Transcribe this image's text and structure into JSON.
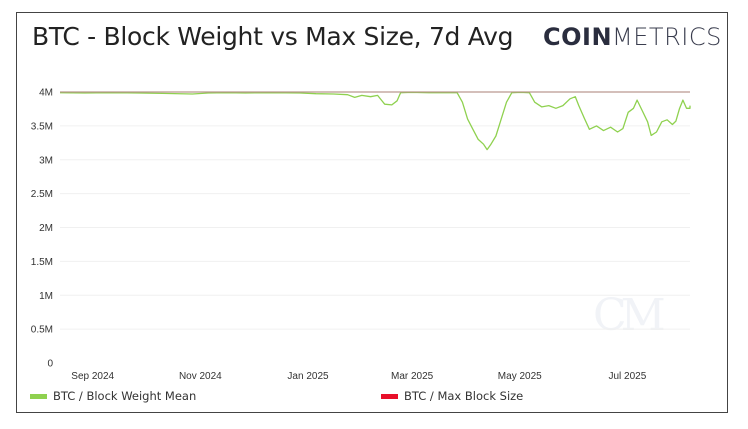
{
  "header": {
    "title": "BTC - Block Weight vs Max Size, 7d Avg",
    "logo_bold": "COIN",
    "logo_light": "METRICS",
    "watermark": "CM"
  },
  "legend": [
    {
      "label": "BTC / Block Weight Mean",
      "color": "#8fd14f"
    },
    {
      "label": "BTC / Max Block Size",
      "color": "#e8102a"
    }
  ],
  "chart_data": {
    "type": "line",
    "title": "BTC - Block Weight vs Max Size, 7d Avg",
    "xlabel": "",
    "ylabel": "",
    "xlim": [
      "2024-08-18",
      "2025-08-10"
    ],
    "ylim": [
      0,
      4000000
    ],
    "grid": true,
    "legend_position": "bottom",
    "y_ticks": [
      {
        "value": 0,
        "label": "0"
      },
      {
        "value": 500000,
        "label": "0.5M"
      },
      {
        "value": 1000000,
        "label": "1M"
      },
      {
        "value": 1500000,
        "label": "1.5M"
      },
      {
        "value": 2000000,
        "label": "2M"
      },
      {
        "value": 2500000,
        "label": "2.5M"
      },
      {
        "value": 3000000,
        "label": "3M"
      },
      {
        "value": 3500000,
        "label": "3.5M"
      },
      {
        "value": 4000000,
        "label": "4M"
      }
    ],
    "x_ticks": [
      {
        "date": "2024-09-01",
        "label": "Sep 2024"
      },
      {
        "date": "2024-11-01",
        "label": "Nov 2024"
      },
      {
        "date": "2025-01-01",
        "label": "Jan 2025"
      },
      {
        "date": "2025-03-01",
        "label": "Mar 2025"
      },
      {
        "date": "2025-05-01",
        "label": "May 2025"
      },
      {
        "date": "2025-07-01",
        "label": "Jul 2025"
      }
    ],
    "series": [
      {
        "name": "BTC / Max Block Size",
        "color": "#e8102a",
        "points": [
          [
            "2024-08-18",
            4000000
          ],
          [
            "2025-08-10",
            4000000
          ]
        ]
      },
      {
        "name": "BTC / Block Weight Mean",
        "color": "#8fd14f",
        "points": [
          [
            "2024-08-18",
            3990000
          ],
          [
            "2024-09-01",
            3985000
          ],
          [
            "2024-09-15",
            3990000
          ],
          [
            "2024-10-01",
            3985000
          ],
          [
            "2024-10-15",
            3980000
          ],
          [
            "2024-11-01",
            3970000
          ],
          [
            "2024-11-10",
            3985000
          ],
          [
            "2024-11-20",
            3990000
          ],
          [
            "2024-12-01",
            3985000
          ],
          [
            "2024-12-15",
            3990000
          ],
          [
            "2025-01-01",
            3985000
          ],
          [
            "2025-01-10",
            3975000
          ],
          [
            "2025-01-20",
            3970000
          ],
          [
            "2025-01-28",
            3960000
          ],
          [
            "2025-02-01",
            3920000
          ],
          [
            "2025-02-05",
            3950000
          ],
          [
            "2025-02-10",
            3930000
          ],
          [
            "2025-02-14",
            3950000
          ],
          [
            "2025-02-18",
            3820000
          ],
          [
            "2025-02-22",
            3810000
          ],
          [
            "2025-02-25",
            3870000
          ],
          [
            "2025-02-27",
            3990000
          ],
          [
            "2025-03-05",
            3995000
          ],
          [
            "2025-03-15",
            3990000
          ],
          [
            "2025-03-25",
            3990000
          ],
          [
            "2025-03-31",
            3990000
          ],
          [
            "2025-04-03",
            3850000
          ],
          [
            "2025-04-06",
            3600000
          ],
          [
            "2025-04-09",
            3450000
          ],
          [
            "2025-04-12",
            3300000
          ],
          [
            "2025-04-15",
            3230000
          ],
          [
            "2025-04-17",
            3150000
          ],
          [
            "2025-04-19",
            3220000
          ],
          [
            "2025-04-22",
            3350000
          ],
          [
            "2025-04-25",
            3600000
          ],
          [
            "2025-04-28",
            3850000
          ],
          [
            "2025-05-01",
            3990000
          ],
          [
            "2025-05-06",
            3995000
          ],
          [
            "2025-05-11",
            3990000
          ],
          [
            "2025-05-14",
            3850000
          ],
          [
            "2025-05-18",
            3780000
          ],
          [
            "2025-05-22",
            3800000
          ],
          [
            "2025-05-26",
            3760000
          ],
          [
            "2025-05-30",
            3800000
          ],
          [
            "2025-06-03",
            3900000
          ],
          [
            "2025-06-06",
            3930000
          ],
          [
            "2025-06-08",
            3800000
          ],
          [
            "2025-06-11",
            3620000
          ],
          [
            "2025-06-14",
            3450000
          ],
          [
            "2025-06-18",
            3500000
          ],
          [
            "2025-06-22",
            3430000
          ],
          [
            "2025-06-26",
            3480000
          ],
          [
            "2025-06-30",
            3410000
          ],
          [
            "2025-07-03",
            3460000
          ],
          [
            "2025-07-06",
            3700000
          ],
          [
            "2025-07-09",
            3760000
          ],
          [
            "2025-07-11",
            3880000
          ],
          [
            "2025-07-14",
            3720000
          ],
          [
            "2025-07-17",
            3560000
          ],
          [
            "2025-07-19",
            3360000
          ],
          [
            "2025-07-22",
            3410000
          ],
          [
            "2025-07-25",
            3560000
          ],
          [
            "2025-07-28",
            3590000
          ],
          [
            "2025-07-31",
            3520000
          ],
          [
            "2025-08-02",
            3570000
          ],
          [
            "2025-08-04",
            3750000
          ],
          [
            "2025-08-06",
            3880000
          ],
          [
            "2025-08-08",
            3760000
          ],
          [
            "2025-08-10",
            3760000
          ],
          [
            "2025-08-11",
            3800000
          ]
        ]
      }
    ]
  }
}
